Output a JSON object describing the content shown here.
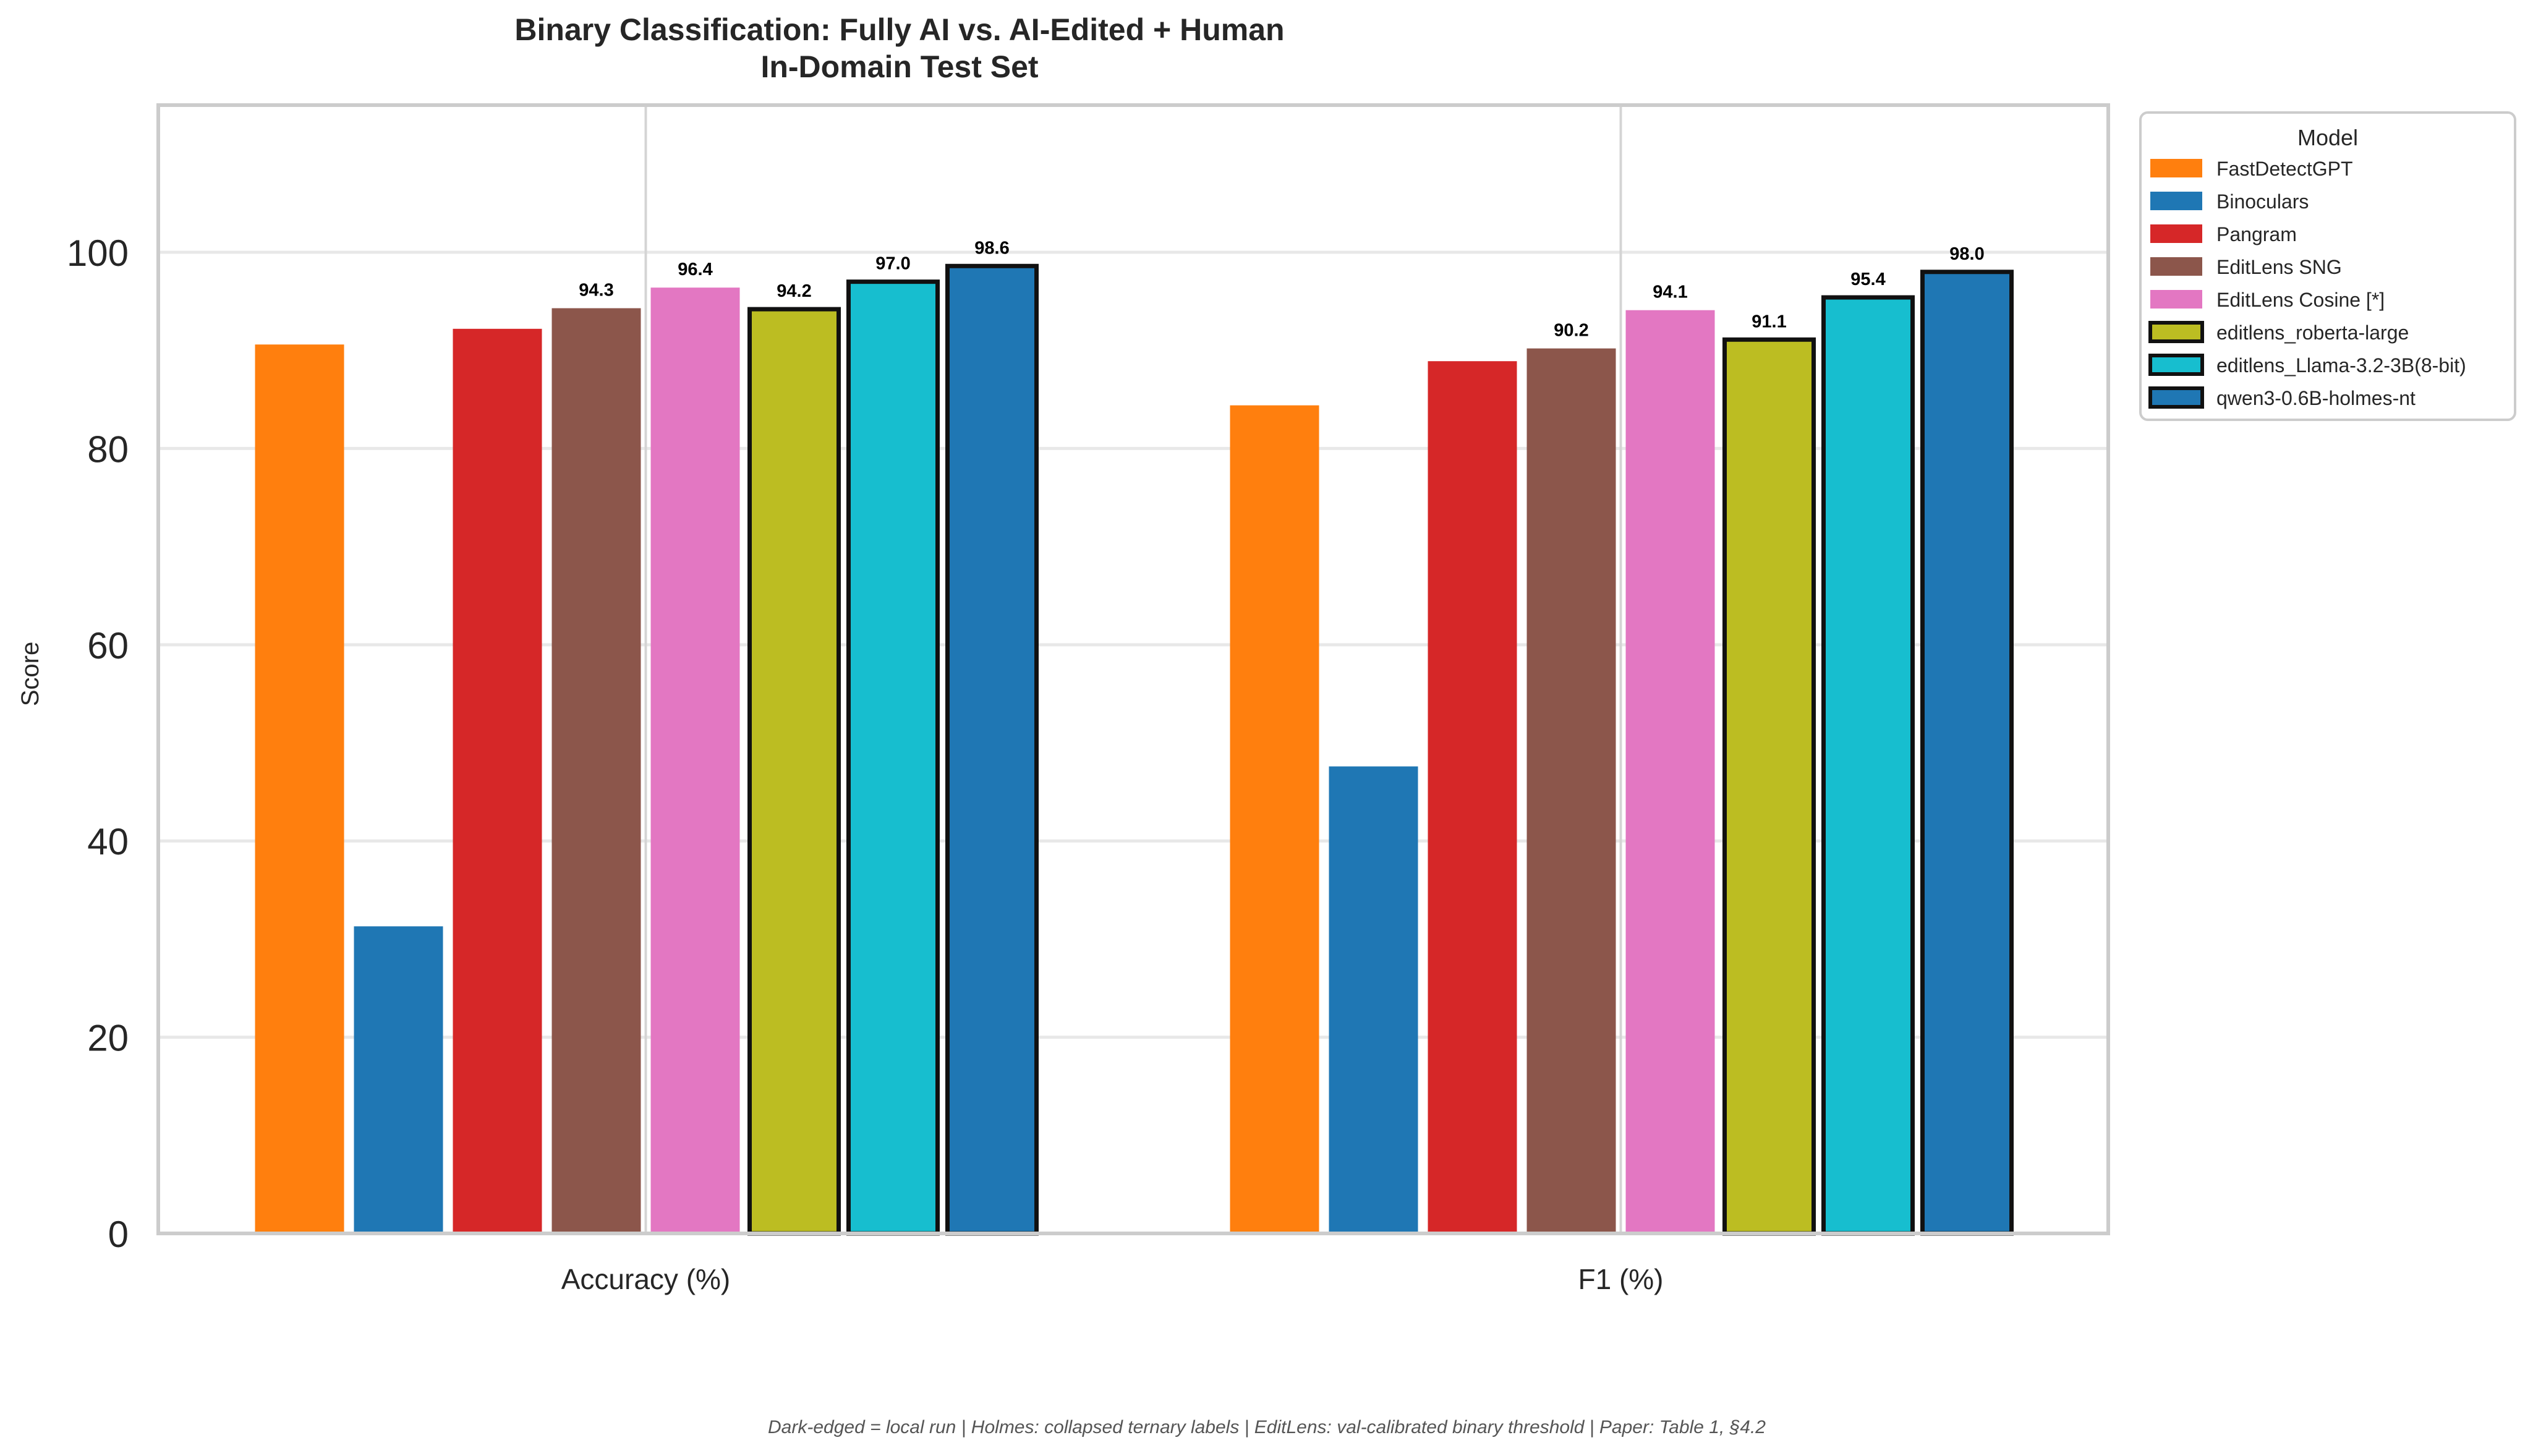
{
  "chart_data": {
    "type": "bar",
    "title": "Binary Classification: Fully AI vs. AI-Edited + Human",
    "subtitle": "In-Domain Test Set",
    "xlabel": "",
    "ylabel": "Score",
    "categories": [
      "Accuracy (%)",
      "F1 (%)"
    ],
    "ylim": [
      0,
      115
    ],
    "yticks": [
      0,
      20,
      40,
      60,
      80,
      100
    ],
    "grid": true,
    "legend": {
      "title": "Model",
      "placement": "outside-top-right"
    },
    "series": [
      {
        "name": "FastDetectGPT",
        "values": [
          90.6,
          84.4
        ],
        "color": "#ff7f0e",
        "edged": false,
        "show_labels": false
      },
      {
        "name": "Binoculars",
        "values": [
          31.3,
          47.6
        ],
        "color": "#1f77b4",
        "edged": false,
        "show_labels": false
      },
      {
        "name": "Pangram",
        "values": [
          92.2,
          88.9
        ],
        "color": "#d62728",
        "edged": false,
        "show_labels": false
      },
      {
        "name": "EditLens SNG",
        "values": [
          94.3,
          90.2
        ],
        "color": "#8c564b",
        "edged": false,
        "show_labels": true
      },
      {
        "name": "EditLens Cosine [*]",
        "values": [
          96.4,
          94.1
        ],
        "color": "#e377c2",
        "edged": false,
        "show_labels": true
      },
      {
        "name": "editlens_roberta-large",
        "values": [
          94.2,
          91.1
        ],
        "color": "#bcbd22",
        "edged": true,
        "show_labels": true
      },
      {
        "name": "editlens_Llama-3.2-3B(8-bit)",
        "values": [
          97.0,
          95.4
        ],
        "color": "#17becf",
        "edged": true,
        "show_labels": true
      },
      {
        "name": "qwen3-0.6B-holmes-nt",
        "values": [
          98.6,
          98.0
        ],
        "color": "#1f77b4",
        "edged": true,
        "show_labels": true
      }
    ],
    "footnote": "Dark-edged = local run  |  Holmes: collapsed ternary labels  |  EditLens: val-calibrated binary threshold  |  Paper: Table 1, §4.2"
  }
}
